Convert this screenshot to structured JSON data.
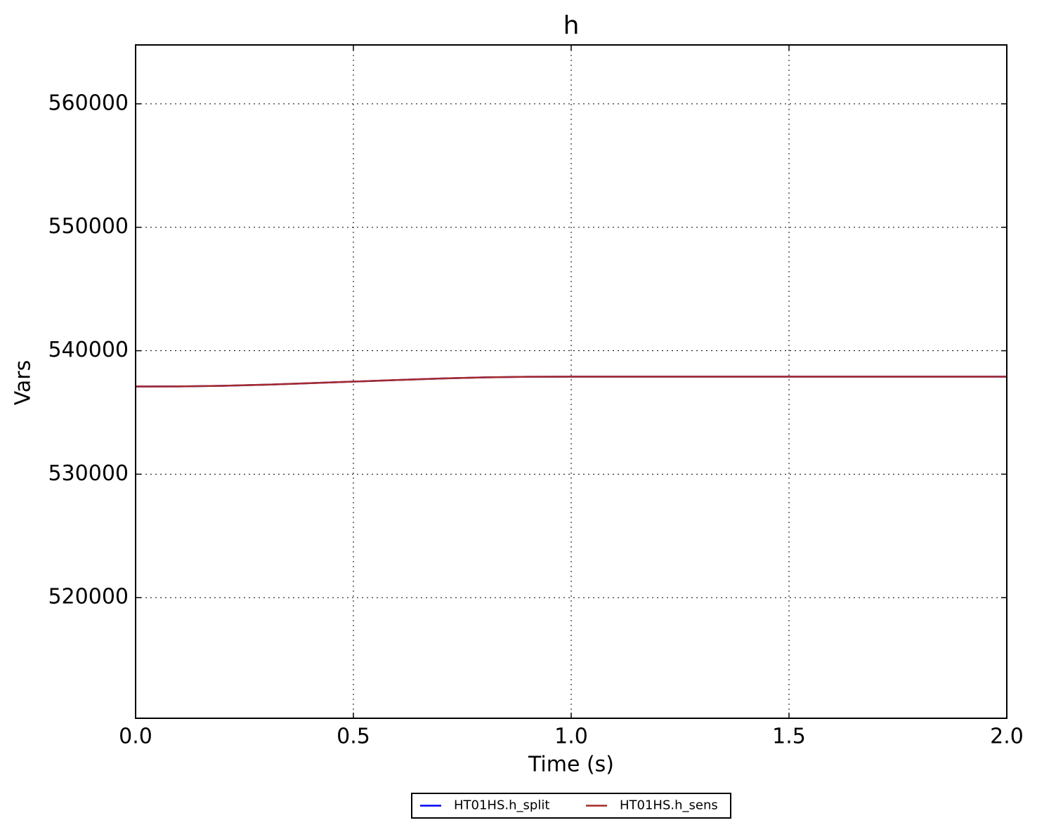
{
  "chart_data": {
    "type": "line",
    "title": "h",
    "x_label": "Time (s)",
    "y_label": "Vars",
    "x": [
      0,
      0.1,
      0.2,
      0.3,
      0.4,
      0.5,
      0.6,
      0.7,
      0.8,
      0.9,
      1.0,
      1.1,
      1.2,
      1.3,
      1.4,
      1.5,
      1.6,
      1.7,
      1.8,
      1.9,
      2.0
    ],
    "series": [
      {
        "name": "HT01HS.h_split",
        "color": "#0000ff",
        "values": [
          537100,
          537110,
          537160,
          537250,
          537370,
          537500,
          537630,
          537750,
          537840,
          537890,
          537900,
          537900,
          537900,
          537900,
          537900,
          537900,
          537900,
          537900,
          537900,
          537900,
          537900
        ]
      },
      {
        "name": "HT01HS.h_sens",
        "color": "#a52a2a",
        "values": [
          537100,
          537110,
          537160,
          537250,
          537370,
          537500,
          537630,
          537750,
          537840,
          537890,
          537900,
          537900,
          537900,
          537900,
          537900,
          537900,
          537900,
          537900,
          537900,
          537900,
          537900
        ]
      }
    ],
    "xlim": [
      0,
      2
    ],
    "xticks": [
      {
        "value": 0,
        "label": "0.0"
      },
      0.5,
      {
        "value": 1,
        "label": "1.0"
      },
      1.5,
      {
        "value": 2,
        "label": "2.0"
      }
    ],
    "ylim": [
      510230,
      564770
    ],
    "yticks": [
      520000,
      530000,
      540000,
      550000,
      560000
    ],
    "grid": true,
    "legend": "bottom"
  }
}
